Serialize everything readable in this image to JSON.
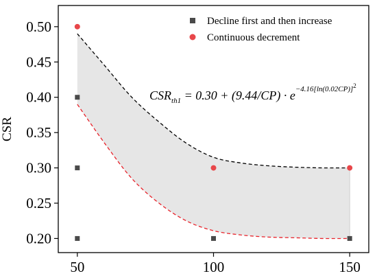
{
  "chart_data": {
    "type": "scatter",
    "xlabel": "",
    "ylabel": "CSR",
    "xlim": [
      43,
      157
    ],
    "ylim": [
      0.18,
      0.53
    ],
    "x_ticks": [
      50,
      100,
      150
    ],
    "y_ticks": [
      0.2,
      0.25,
      0.3,
      0.35,
      0.4,
      0.45,
      0.5
    ],
    "x_tick_labels": [
      "50",
      "100",
      "150"
    ],
    "y_tick_labels": [
      "0.20",
      "0.25",
      "0.30",
      "0.35",
      "0.40",
      "0.45",
      "0.50"
    ],
    "grid": false,
    "legend_position": "top-right",
    "series": [
      {
        "name": "Decline first and then increase",
        "marker": "square",
        "color": "#4a4a4a",
        "points": [
          [
            50,
            0.4
          ],
          [
            50,
            0.3
          ],
          [
            50,
            0.2
          ],
          [
            100,
            0.2
          ],
          [
            150,
            0.2
          ]
        ]
      },
      {
        "name": "Continuous decrement",
        "marker": "circle",
        "color": "#e8474a",
        "points": [
          [
            50,
            0.5
          ],
          [
            100,
            0.3
          ],
          [
            150,
            0.3
          ]
        ]
      }
    ],
    "boundaries": [
      {
        "style": "dashed",
        "color": "#000000",
        "points": [
          [
            50,
            0.49
          ],
          [
            60,
            0.445
          ],
          [
            70,
            0.4
          ],
          [
            80,
            0.365
          ],
          [
            90,
            0.335
          ],
          [
            100,
            0.315
          ],
          [
            110,
            0.307
          ],
          [
            120,
            0.303
          ],
          [
            130,
            0.301
          ],
          [
            140,
            0.3
          ],
          [
            150,
            0.3
          ]
        ]
      },
      {
        "style": "dashed",
        "color": "#e8222a",
        "points": [
          [
            50,
            0.39
          ],
          [
            60,
            0.335
          ],
          [
            70,
            0.285
          ],
          [
            80,
            0.25
          ],
          [
            90,
            0.225
          ],
          [
            100,
            0.211
          ],
          [
            110,
            0.205
          ],
          [
            120,
            0.202
          ],
          [
            130,
            0.201
          ],
          [
            140,
            0.2
          ],
          [
            150,
            0.2
          ]
        ]
      }
    ],
    "fill_color": "#e6e6e6",
    "equation": {
      "lhs": "CSR",
      "lhs_sub": "th1",
      "body": " = 0.30 + (9.44/CP) · e",
      "exponent": "−4.16[ln(0.02CP)]",
      "exponent_power": "2"
    }
  }
}
